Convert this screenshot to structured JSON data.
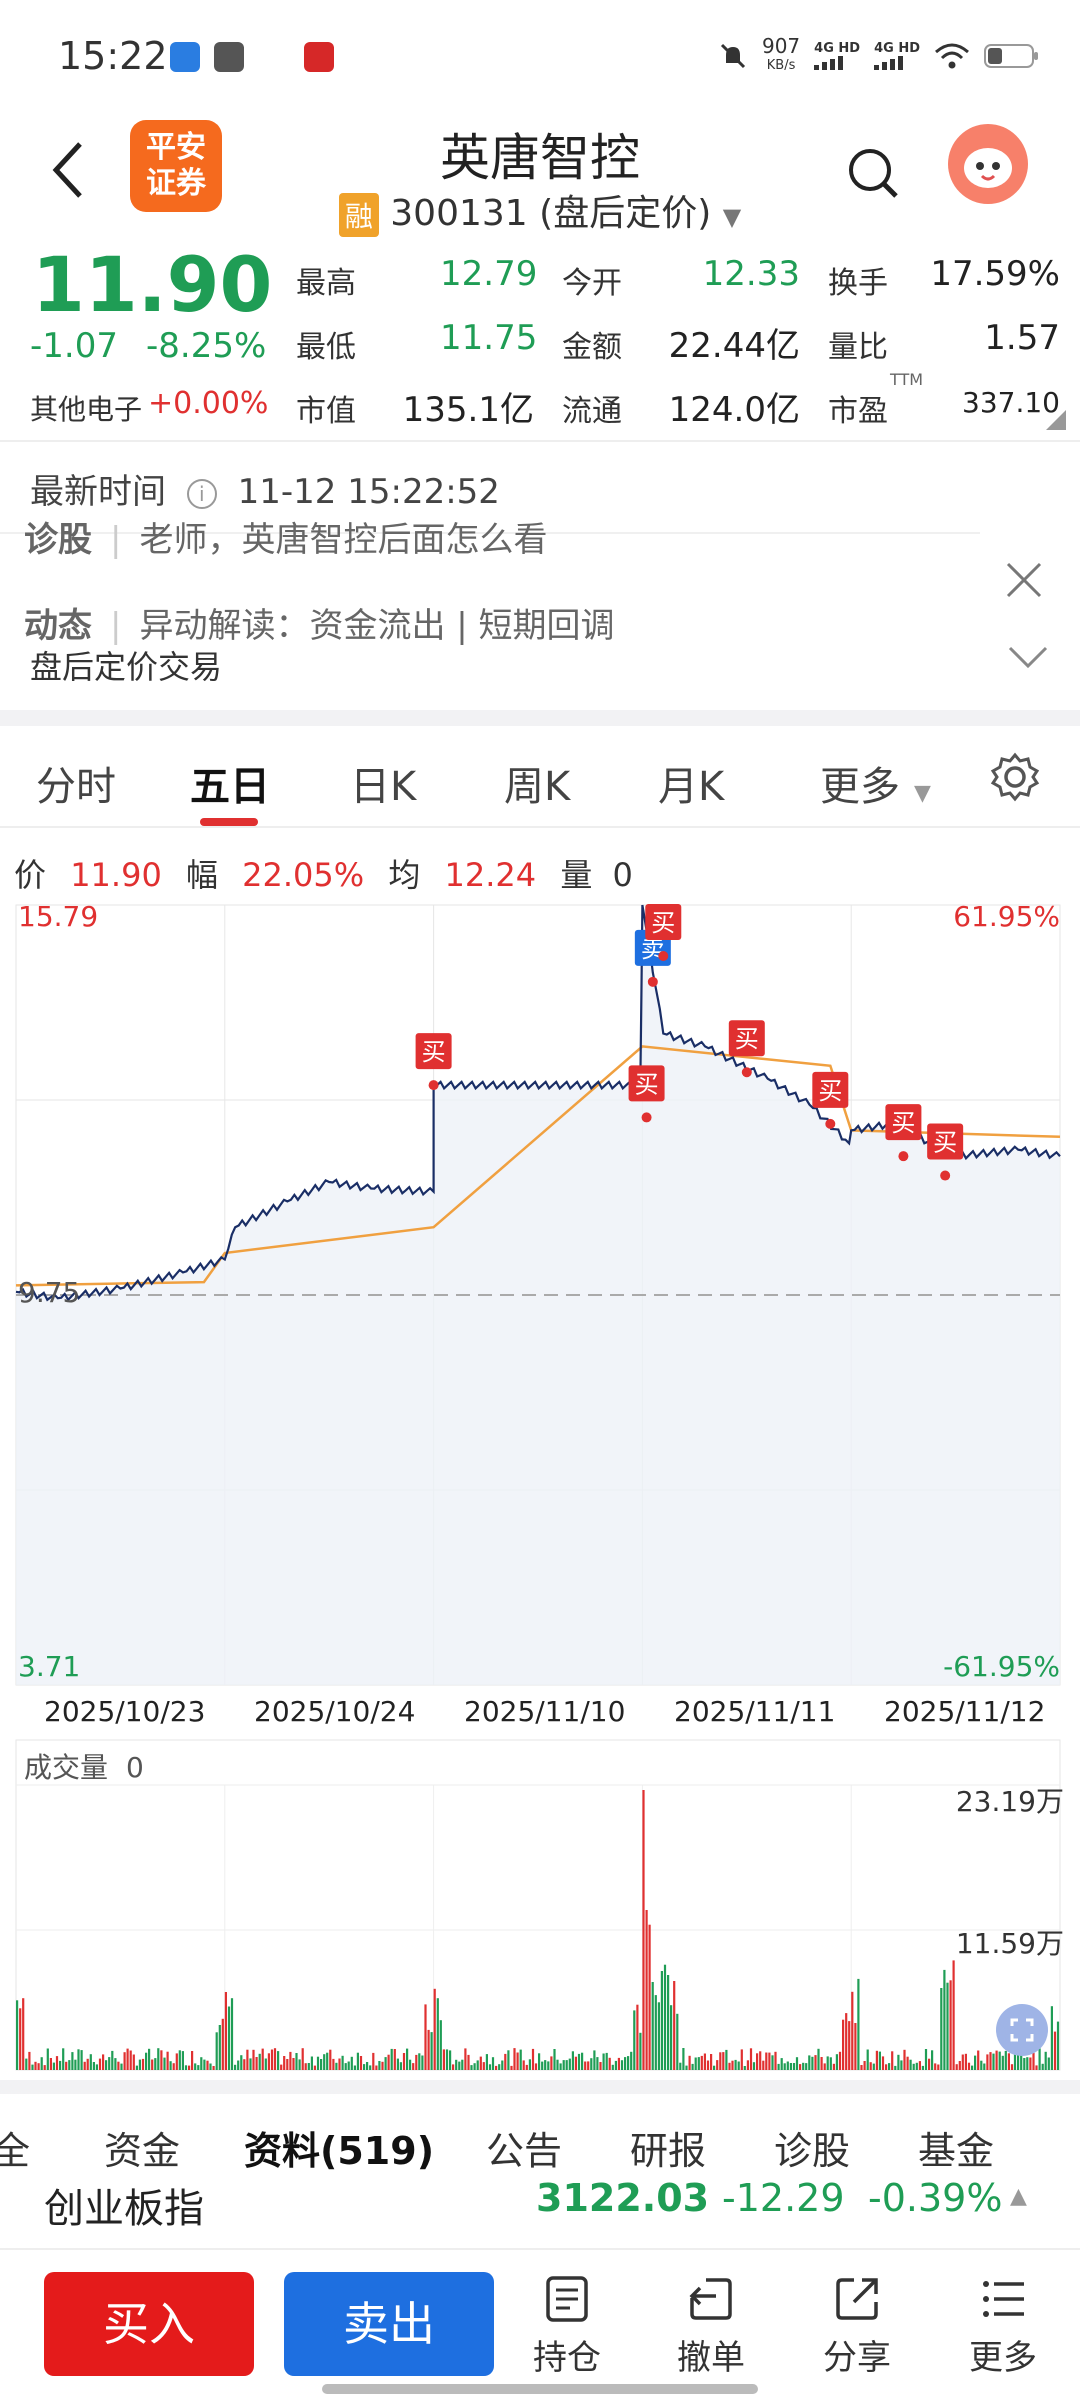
{
  "status_bar": {
    "time": "15:22",
    "net_speed": "907",
    "net_unit": "KB/s",
    "sig1": "4G HD",
    "sig2": "4G HD"
  },
  "header": {
    "title": "英唐智控",
    "rong_badge": "融",
    "code_subtitle": "300131 (盘后定价)",
    "brand_logo": "平安证券"
  },
  "quote": {
    "price": "11.90",
    "change": "-1.07",
    "change_pct": "-8.25%",
    "sector_label": "其他电子",
    "sector_pct": "+0.00%",
    "stats": [
      {
        "label": "最高",
        "value": "12.79",
        "color": "green"
      },
      {
        "label": "今开",
        "value": "12.33",
        "color": "green"
      },
      {
        "label": "换手",
        "value": "17.59%",
        "color": "dark"
      },
      {
        "label": "最低",
        "value": "11.75",
        "color": "green"
      },
      {
        "label": "金额",
        "value": "22.44亿",
        "color": "dark"
      },
      {
        "label": "量比",
        "value": "1.57",
        "color": "dark"
      },
      {
        "label": "市值",
        "value": "135.1亿",
        "color": "dark"
      },
      {
        "label": "流通",
        "value": "124.0亿",
        "color": "dark"
      },
      {
        "label": "市盈",
        "value": "337.10",
        "color": "dark",
        "sup": "TTM"
      }
    ]
  },
  "notice": {
    "latest_label": "最新时间",
    "latest_time": "11-12 15:22:52",
    "row1_tag": "诊股",
    "row1_text": "老师，英唐智控后面怎么看",
    "row2_tag": "动态",
    "row2_text": "异动解读：资金流出 | 短期回调",
    "after_hours": "盘后定价交易"
  },
  "tabs": [
    "分时",
    "五日",
    "日K",
    "周K",
    "月K",
    "更多"
  ],
  "active_tab": "五日",
  "info_line": {
    "price_label": "价",
    "price": "11.90",
    "amp_label": "幅",
    "amp": "22.05%",
    "avg_label": "均",
    "avg": "12.24",
    "vol_label": "量",
    "vol": "0"
  },
  "chart_labels": {
    "y_top": "15.79",
    "y_mid": "9.75",
    "y_bottom": "3.71",
    "pct_top": "61.95%",
    "pct_bottom": "-61.95%"
  },
  "chart_data": {
    "type": "line",
    "x_days": [
      "2025/10/23",
      "2025/10/24",
      "2025/11/10",
      "2025/11/11",
      "2025/11/12"
    ],
    "ylim": [
      3.71,
      15.79
    ],
    "baseline": 9.75,
    "series": [],
    "price_points": [
      [
        0,
        9.8
      ],
      [
        0.2,
        9.7
      ],
      [
        0.5,
        9.85
      ],
      [
        0.8,
        10.1
      ],
      [
        1.0,
        10.3
      ],
      [
        1.05,
        10.8
      ],
      [
        1.3,
        11.2
      ],
      [
        1.5,
        11.5
      ],
      [
        1.7,
        11.4
      ],
      [
        2.0,
        11.35
      ],
      [
        2.0,
        13.0
      ],
      [
        2.99,
        13.0
      ],
      [
        3.0,
        15.79
      ],
      [
        3.1,
        13.8
      ],
      [
        3.3,
        13.6
      ],
      [
        3.6,
        13.1
      ],
      [
        3.8,
        12.7
      ],
      [
        3.99,
        12.1
      ],
      [
        4.0,
        12.3
      ],
      [
        4.2,
        12.4
      ],
      [
        4.5,
        11.9
      ],
      [
        4.8,
        12.0
      ],
      [
        5.0,
        11.9
      ]
    ],
    "avg_points": [
      [
        0,
        9.9
      ],
      [
        0.9,
        9.95
      ],
      [
        1.0,
        10.4
      ],
      [
        2.0,
        10.8
      ],
      [
        3.0,
        13.6
      ],
      [
        3.9,
        13.3
      ],
      [
        4.0,
        12.3
      ],
      [
        5.0,
        12.2
      ]
    ],
    "markers": [
      {
        "label": "买",
        "x": 2.0,
        "y": 13.0
      },
      {
        "label": "卖",
        "x": 3.05,
        "y": 14.6
      },
      {
        "label": "买",
        "x": 3.1,
        "y": 15.0
      },
      {
        "label": "买",
        "x": 3.02,
        "y": 12.5
      },
      {
        "label": "买",
        "x": 3.5,
        "y": 13.2
      },
      {
        "label": "买",
        "x": 3.9,
        "y": 12.4
      },
      {
        "label": "买",
        "x": 4.25,
        "y": 11.9
      },
      {
        "label": "买",
        "x": 4.45,
        "y": 11.6
      }
    ]
  },
  "volume": {
    "title": "成交量",
    "value": "0",
    "top": "23.19万",
    "mid": "11.59万"
  },
  "bottom_tabs": [
    "全",
    "资金",
    "资料(519)",
    "公告",
    "研报",
    "诊股",
    "基金"
  ],
  "index": {
    "name": "创业板指",
    "value": "3122.03",
    "change": "-12.29",
    "pct": "-0.39%"
  },
  "actions": {
    "buy": "买入",
    "sell": "卖出",
    "items": [
      "持仓",
      "撤单",
      "分享",
      "更多"
    ]
  },
  "colors": {
    "red": "#e03030",
    "green": "#1f9d55",
    "blue": "#1e6fe0",
    "price_line": "#1a2e66",
    "avg_line": "#f0a040"
  }
}
